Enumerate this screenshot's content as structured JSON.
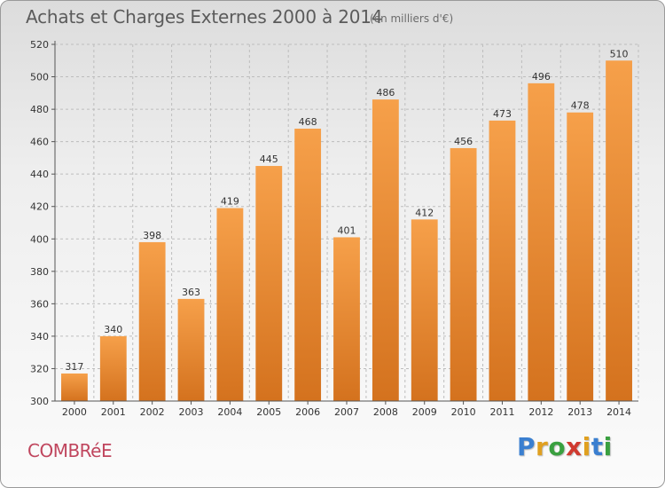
{
  "title": "Achats et Charges Externes 2000 à 2014",
  "subtitle": "(en milliers d'€)",
  "commune": "COMBRéE",
  "logo": {
    "letters": [
      "P",
      "r",
      "o",
      "x",
      "i",
      "t",
      "i"
    ],
    "colors": [
      "#3a7fd0",
      "#e0a020",
      "#3aa040",
      "#d03a30",
      "#e0a020",
      "#3a7fd0",
      "#3aa040"
    ]
  },
  "colors": {
    "bar_top": "#f6a04a",
    "bar_bottom": "#d4721e",
    "grid": "#bdbdbd",
    "axis": "#555555"
  },
  "chart_data": {
    "type": "bar",
    "title": "Achats et Charges Externes 2000 à 2014",
    "subtitle": "(en milliers d'€)",
    "xlabel": "",
    "ylabel": "",
    "categories": [
      "2000",
      "2001",
      "2002",
      "2003",
      "2004",
      "2005",
      "2006",
      "2007",
      "2008",
      "2009",
      "2010",
      "2011",
      "2012",
      "2013",
      "2014"
    ],
    "values": [
      317,
      340,
      398,
      363,
      419,
      445,
      468,
      401,
      486,
      412,
      456,
      473,
      496,
      478,
      510
    ],
    "ylim": [
      300,
      520
    ],
    "yticks": [
      300,
      320,
      340,
      360,
      380,
      400,
      420,
      440,
      460,
      480,
      500,
      520
    ],
    "grid": true,
    "data_labels": true
  }
}
